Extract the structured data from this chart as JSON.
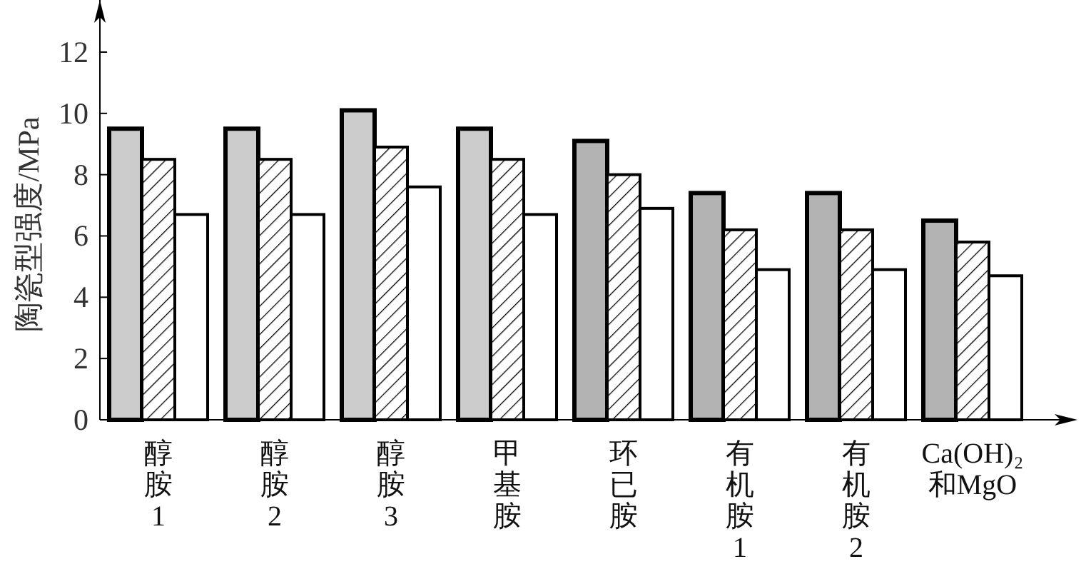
{
  "chart_data": {
    "type": "bar",
    "ylabel": "陶瓷型强度/MPa",
    "categories": [
      "醇胺1",
      "醇胺2",
      "醇胺3",
      "甲基胺",
      "环已胺",
      "有机胺1",
      "有机胺2",
      "Ca(OH)₂和MgO"
    ],
    "series": [
      {
        "colors": [
          "#cccccc",
          "#cccccc",
          "#cccccc",
          "#cccccc",
          "#b3b3b3",
          "#b3b3b3",
          "#b3b3b3",
          "#b3b3b3"
        ],
        "values": [
          9.5,
          9.5,
          10.1,
          9.5,
          9.1,
          7.4,
          7.4,
          6.5
        ]
      },
      {
        "color": "#000000",
        "values": [
          8.5,
          8.5,
          8.9,
          8.5,
          8.0,
          6.2,
          6.2,
          5.8
        ]
      },
      {
        "color": "#ffffff",
        "values": [
          6.7,
          6.7,
          7.6,
          6.7,
          6.9,
          4.9,
          4.9,
          4.7
        ]
      }
    ],
    "ylim": [
      0,
      13.7
    ],
    "yticks": [
      0,
      2,
      4,
      6,
      8,
      10,
      12
    ],
    "grid": false
  }
}
